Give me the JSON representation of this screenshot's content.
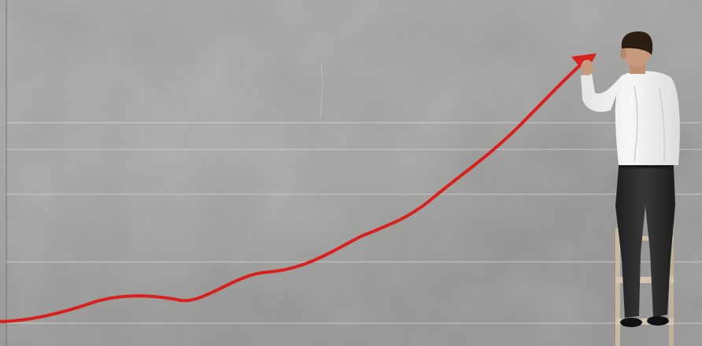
{
  "scene": {
    "wall_color": "#9a9a98",
    "gridline_color": "#d6d6d4",
    "trend_line_color": "#d8201e",
    "shirt_color": "#f3f3f1",
    "trousers_color": "#2a2a2a",
    "ladder_color": "#c7b9a6",
    "hair_color": "#2b1d14",
    "skin_color": "#c89a7c"
  }
}
